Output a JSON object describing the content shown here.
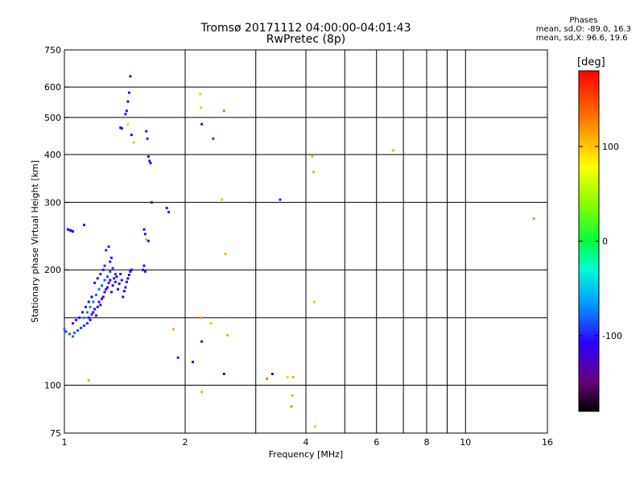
{
  "chart_data": {
    "type": "scatter",
    "title": "Tromsø 20171112 04:00:00-04:01:43",
    "subtitle": "RwPretec (8p)",
    "xlabel": "Frequency [MHz]",
    "ylabel": "Stationary phase Virtual Height [km]",
    "x_scale": "log",
    "y_scale": "log",
    "xlim": [
      1,
      16
    ],
    "ylim": [
      75,
      750
    ],
    "x_ticks": [
      1,
      2,
      4,
      6,
      8,
      10,
      16
    ],
    "y_ticks": [
      75,
      100,
      200,
      300,
      400,
      500,
      600,
      750
    ],
    "grid": true,
    "colorbar": {
      "label": "[deg]",
      "range": [
        -180,
        180
      ],
      "ticks": [
        100,
        0,
        -100
      ]
    },
    "phases_legend": {
      "title": "Phases",
      "o_line": "mean, sd,O: -89.0, 16.3",
      "x_line": "mean, sd,X:  96.6, 19.6"
    },
    "points": [
      [
        1.02,
        255,
        -110
      ],
      [
        1.03,
        254,
        -112
      ],
      [
        1.04,
        253,
        -108
      ],
      [
        1.05,
        252,
        -115
      ],
      [
        1.12,
        262,
        -110
      ],
      [
        1.0,
        140,
        -75
      ],
      [
        1.01,
        138,
        -80
      ],
      [
        1.03,
        136,
        -85
      ],
      [
        1.05,
        134,
        -78
      ],
      [
        1.06,
        137,
        -82
      ],
      [
        1.08,
        139,
        -88
      ],
      [
        1.1,
        141,
        -92
      ],
      [
        1.12,
        143,
        -95
      ],
      [
        1.14,
        145,
        -98
      ],
      [
        1.15,
        150,
        -102
      ],
      [
        1.16,
        148,
        -105
      ],
      [
        1.17,
        153,
        -100
      ],
      [
        1.18,
        155,
        -108
      ],
      [
        1.19,
        158,
        -110
      ],
      [
        1.2,
        152,
        -104
      ],
      [
        1.21,
        160,
        -112
      ],
      [
        1.22,
        165,
        -115
      ],
      [
        1.23,
        162,
        -109
      ],
      [
        1.24,
        168,
        -106
      ],
      [
        1.25,
        170,
        -112
      ],
      [
        1.26,
        175,
        -118
      ],
      [
        1.27,
        178,
        -114
      ],
      [
        1.28,
        180,
        -110
      ],
      [
        1.29,
        185,
        -116
      ],
      [
        1.3,
        188,
        -112
      ],
      [
        1.31,
        175,
        -108
      ],
      [
        1.32,
        182,
        -111
      ],
      [
        1.33,
        190,
        -115
      ],
      [
        1.34,
        186,
        -118
      ],
      [
        1.35,
        192,
        -112
      ],
      [
        1.36,
        178,
        -106
      ],
      [
        1.37,
        184,
        -110
      ],
      [
        1.38,
        195,
        -113
      ],
      [
        1.39,
        188,
        -117
      ],
      [
        1.4,
        170,
        -110
      ],
      [
        1.41,
        176,
        -108
      ],
      [
        1.42,
        180,
        -112
      ],
      [
        1.43,
        186,
        -114
      ],
      [
        1.44,
        190,
        -110
      ],
      [
        1.45,
        194,
        -116
      ],
      [
        1.46,
        198,
        -112
      ],
      [
        1.47,
        200,
        -118
      ],
      [
        1.12,
        150,
        -70
      ],
      [
        1.14,
        155,
        -75
      ],
      [
        1.16,
        160,
        -72
      ],
      [
        1.18,
        165,
        -78
      ],
      [
        1.2,
        172,
        -80
      ],
      [
        1.22,
        178,
        -76
      ],
      [
        1.24,
        182,
        -82
      ],
      [
        1.26,
        188,
        -85
      ],
      [
        1.28,
        192,
        -88
      ],
      [
        1.3,
        198,
        -90
      ],
      [
        1.32,
        202,
        -92
      ],
      [
        1.34,
        195,
        -94
      ],
      [
        1.27,
        225,
        -100
      ],
      [
        1.29,
        230,
        -104
      ],
      [
        1.3,
        210,
        -102
      ],
      [
        1.31,
        215,
        -106
      ],
      [
        1.26,
        205,
        -98
      ],
      [
        1.25,
        200,
        -110
      ],
      [
        1.23,
        195,
        -112
      ],
      [
        1.21,
        190,
        -108
      ],
      [
        1.19,
        185,
        -114
      ],
      [
        1.17,
        170,
        -110
      ],
      [
        1.15,
        165,
        -112
      ],
      [
        1.13,
        160,
        -116
      ],
      [
        1.11,
        155,
        -110
      ],
      [
        1.09,
        150,
        -108
      ],
      [
        1.07,
        148,
        -104
      ],
      [
        1.05,
        145,
        -100
      ],
      [
        1.38,
        470,
        -115
      ],
      [
        1.39,
        468,
        -112
      ],
      [
        1.42,
        510,
        -110
      ],
      [
        1.43,
        520,
        -105
      ],
      [
        1.44,
        550,
        -115
      ],
      [
        1.45,
        580,
        -112
      ],
      [
        1.46,
        640,
        -130
      ],
      [
        1.44,
        480,
        95
      ],
      [
        1.47,
        450,
        -108
      ],
      [
        1.49,
        430,
        100
      ],
      [
        1.6,
        460,
        -105
      ],
      [
        1.61,
        440,
        -100
      ],
      [
        1.62,
        395,
        -115
      ],
      [
        1.63,
        385,
        -120
      ],
      [
        1.64,
        380,
        -118
      ],
      [
        1.65,
        300,
        -125
      ],
      [
        1.58,
        255,
        -115
      ],
      [
        1.59,
        248,
        -120
      ],
      [
        1.6,
        240,
        105
      ],
      [
        1.62,
        238,
        -118
      ],
      [
        1.57,
        200,
        -110
      ],
      [
        1.58,
        205,
        -112
      ],
      [
        1.59,
        198,
        -108
      ],
      [
        1.8,
        290,
        -125
      ],
      [
        1.82,
        283,
        -130
      ],
      [
        1.87,
        140,
        110
      ],
      [
        1.92,
        118,
        -100
      ],
      [
        2.09,
        115,
        -105
      ],
      [
        2.18,
        575,
        100
      ],
      [
        2.19,
        530,
        100
      ],
      [
        2.2,
        480,
        -130
      ],
      [
        2.19,
        150,
        120
      ],
      [
        2.2,
        130,
        -120
      ],
      [
        2.2,
        96,
        110
      ],
      [
        2.35,
        440,
        -90
      ],
      [
        2.32,
        145,
        100
      ],
      [
        2.5,
        520,
        130
      ],
      [
        2.47,
        305,
        105
      ],
      [
        2.52,
        220,
        105
      ],
      [
        2.55,
        135,
        110
      ],
      [
        2.5,
        107,
        -120
      ],
      [
        3.45,
        305,
        -95
      ],
      [
        3.2,
        104,
        130
      ],
      [
        3.3,
        107,
        -125
      ],
      [
        3.6,
        105,
        100
      ],
      [
        3.72,
        105,
        110
      ],
      [
        3.7,
        94,
        110
      ],
      [
        3.68,
        88,
        125
      ],
      [
        4.15,
        395,
        110
      ],
      [
        4.18,
        360,
        110
      ],
      [
        4.2,
        165,
        100
      ],
      [
        4.22,
        78,
        100
      ],
      [
        6.6,
        410,
        110
      ],
      [
        14.8,
        272,
        120
      ],
      [
        1.15,
        103,
        110
      ]
    ]
  }
}
